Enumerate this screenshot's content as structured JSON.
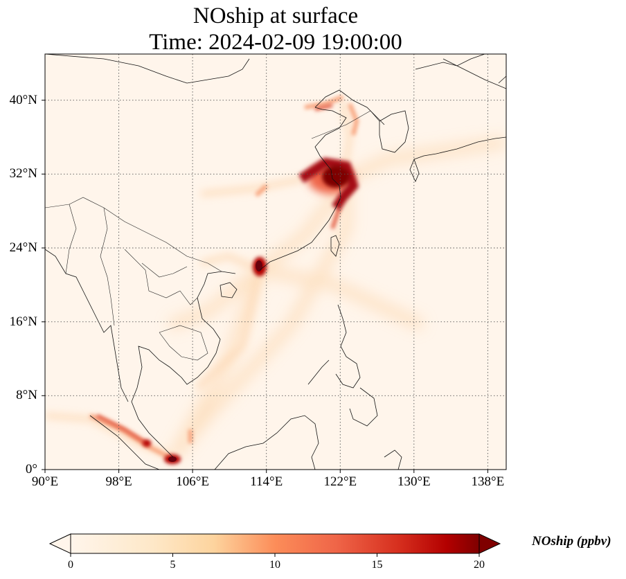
{
  "map": {
    "title": "NOship at surface",
    "subtitle": "Time: 2024-02-09 19:00:00",
    "variable": "NOship",
    "level": "surface",
    "time": "2024-02-09 19:00:00",
    "extent": {
      "lon": [
        90,
        140
      ],
      "lat": [
        0,
        45
      ]
    },
    "gridlines": "dotted",
    "lat_ticks": [
      "0°",
      "8°N",
      "16°N",
      "24°N",
      "32°N",
      "40°N"
    ],
    "lon_ticks": [
      "90°E",
      "98°E",
      "106°E",
      "114°E",
      "122°E",
      "130°E",
      "138°E"
    ],
    "lat_values": [
      0,
      8,
      16,
      24,
      32,
      40
    ],
    "lon_values": [
      90,
      98,
      106,
      114,
      122,
      130,
      138
    ],
    "colormap": "OrRd",
    "background_color": "#fff5eb",
    "hotspots": [
      {
        "region": "Yangtze River Delta / Shanghai",
        "lon": 121.5,
        "lat": 31.5,
        "value": 20
      },
      {
        "region": "Pearl River Delta",
        "lon": 113.5,
        "lat": 22.2,
        "value": 20
      },
      {
        "region": "Singapore Strait",
        "lon": 103.8,
        "lat": 1.2,
        "value": 20
      },
      {
        "region": "Strait of Malacca",
        "lon": 101.5,
        "lat": 2.8,
        "value": 14
      },
      {
        "region": "Bohai Sea",
        "lon": 119.5,
        "lat": 39.0,
        "value": 10
      }
    ]
  },
  "colorbar": {
    "label": "NOship (ppbv)",
    "min": 0,
    "max": 20,
    "ticks": [
      "0",
      "5",
      "10",
      "15",
      "20"
    ],
    "tick_values": [
      0,
      5,
      10,
      15,
      20
    ],
    "extend": "both",
    "colors": [
      "#fff5eb",
      "#fdd49e",
      "#fdbb84",
      "#ef6548",
      "#d7301f",
      "#b30000",
      "#7f0000"
    ]
  }
}
